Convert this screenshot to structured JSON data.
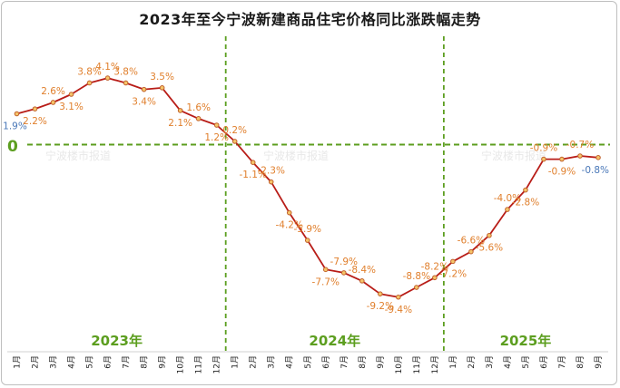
{
  "title": "2023年至今宁波新建商品住宅价格同比涨跌幅走势",
  "watermark": "宁波楼市报道",
  "zero_label": "0",
  "colors": {
    "line": "#b81d18",
    "marker_fill": "#f5c46a",
    "marker_stroke": "#c0602a",
    "label_default": "#e07f2c",
    "label_first_last": "#4a78b8",
    "guide": "#5c9e1f"
  },
  "chart_data": {
    "type": "line",
    "title": "2023年至今宁波新建商品住宅价格同比涨跌幅走势",
    "unit": "%",
    "ylim": [
      -10.5,
      5.2
    ],
    "reference_line": 0,
    "groups": [
      {
        "label": "2023年",
        "months": [
          "1月",
          "2月",
          "3月",
          "4月",
          "5月",
          "6月",
          "7月",
          "8月",
          "9月",
          "10月",
          "11月",
          "12月"
        ]
      },
      {
        "label": "2024年",
        "months": [
          "1月",
          "2月",
          "3月",
          "4月",
          "5月",
          "6月",
          "7月",
          "8月",
          "9月",
          "10月",
          "11月",
          "12月"
        ]
      },
      {
        "label": "2025年",
        "months": [
          "1月",
          "2月",
          "3月",
          "4月",
          "5月",
          "6月",
          "7月",
          "8月",
          "9月"
        ]
      }
    ],
    "categories": [
      "2023-1月",
      "2023-2月",
      "2023-3月",
      "2023-4月",
      "2023-5月",
      "2023-6月",
      "2023-7月",
      "2023-8月",
      "2023-9月",
      "2023-10月",
      "2023-11月",
      "2023-12月",
      "2024-1月",
      "2024-2月",
      "2024-3月",
      "2024-4月",
      "2024-5月",
      "2024-6月",
      "2024-7月",
      "2024-8月",
      "2024-9月",
      "2024-10月",
      "2024-11月",
      "2024-12月",
      "2025-1月",
      "2025-2月",
      "2025-3月",
      "2025-4月",
      "2025-5月",
      "2025-6月",
      "2025-7月",
      "2025-8月",
      "2025-9月"
    ],
    "values": [
      1.9,
      2.2,
      2.6,
      3.1,
      3.8,
      4.1,
      3.8,
      3.4,
      3.5,
      2.1,
      1.6,
      1.2,
      0.2,
      -1.1,
      -2.3,
      -4.2,
      -5.9,
      -7.7,
      -7.9,
      -8.4,
      -9.2,
      -9.4,
      -8.8,
      -8.2,
      -7.2,
      -6.6,
      -5.6,
      -4.0,
      -2.8,
      -0.9,
      -0.9,
      -0.7,
      -0.8
    ],
    "labels": [
      "1.9%",
      "2.2%",
      "2.6%",
      "3.1%",
      "3.8%",
      "4.1%",
      "3.8%",
      "3.4%",
      "3.5%",
      "2.1%",
      "1.6%",
      "1.2%",
      "0.2%",
      "-1.1%",
      "-2.3%",
      "-4.2%",
      "-5.9%",
      "-7.7%",
      "-7.9%",
      "-8.4%",
      "-9.2%",
      "-9.4%",
      "-8.8%",
      "-8.2%",
      "-7.2%",
      "-6.6%",
      "-5.6%",
      "-4.0%",
      "-2.8%",
      "-0.9%",
      "-0.9%",
      "-0.7%",
      "-0.8%"
    ],
    "label_pos": [
      "below",
      "below",
      "above",
      "below",
      "above",
      "above",
      "above",
      "below",
      "above",
      "below",
      "above",
      "below",
      "above",
      "below",
      "above",
      "below",
      "above",
      "below",
      "above",
      "above",
      "below",
      "below",
      "above",
      "above",
      "below",
      "above",
      "below",
      "above",
      "below",
      "above",
      "below",
      "above",
      "below"
    ]
  }
}
